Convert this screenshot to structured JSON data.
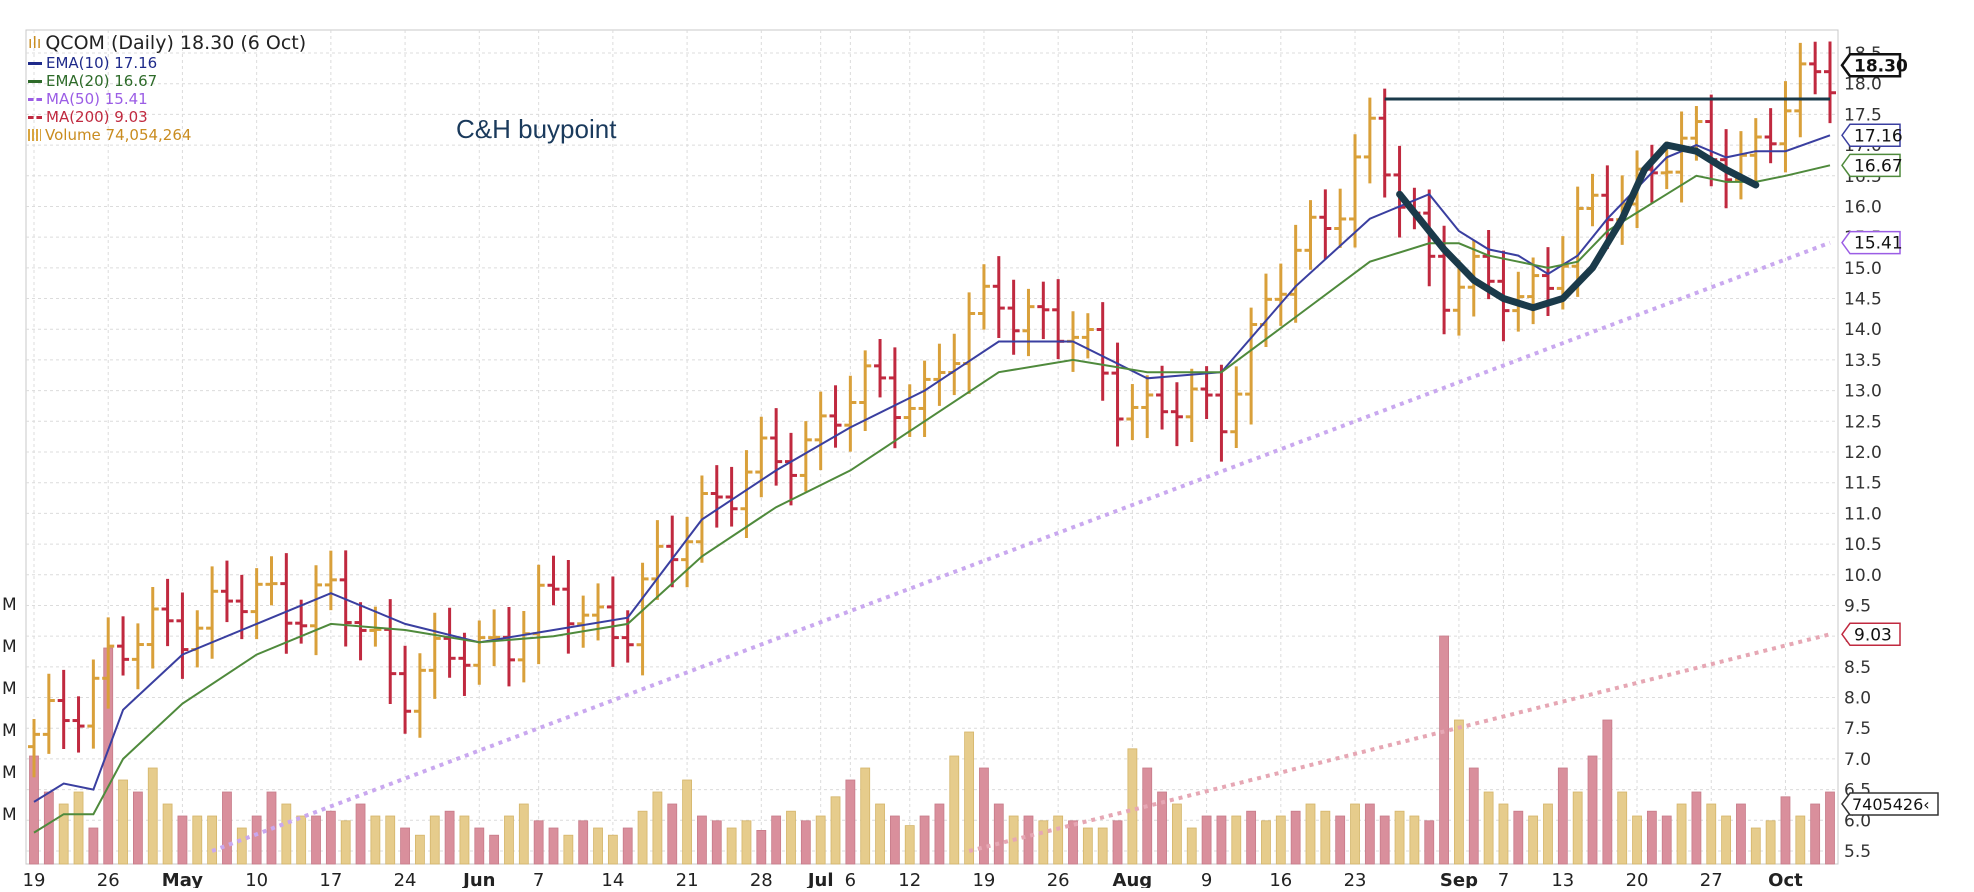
{
  "chart_data": {
    "type": "line",
    "title": "QCOM (Daily) 18.30 (6 Oct)",
    "ylim": [
      5.5,
      18.5
    ],
    "y_ticks": [
      "18.5",
      "18.0",
      "17.5",
      "17.0",
      "16.5",
      "16.0",
      "15.5",
      "15.0",
      "14.5",
      "14.0",
      "13.5",
      "13.0",
      "12.5",
      "12.0",
      "11.5",
      "11.0",
      "10.5",
      "10.0",
      "9.5",
      "9.0",
      "8.5",
      "8.0",
      "7.5",
      "7.0",
      "6.5",
      "6.0",
      "5.5"
    ],
    "x_ticks": [
      {
        "label": "19",
        "day": 0,
        "bold": false
      },
      {
        "label": "26",
        "day": 5,
        "bold": false
      },
      {
        "label": "May",
        "day": 10,
        "bold": true
      },
      {
        "label": "10",
        "day": 15,
        "bold": false
      },
      {
        "label": "17",
        "day": 20,
        "bold": false
      },
      {
        "label": "24",
        "day": 25,
        "bold": false
      },
      {
        "label": "Jun",
        "day": 30,
        "bold": true
      },
      {
        "label": "7",
        "day": 34,
        "bold": false
      },
      {
        "label": "14",
        "day": 39,
        "bold": false
      },
      {
        "label": "21",
        "day": 44,
        "bold": false
      },
      {
        "label": "28",
        "day": 49,
        "bold": false
      },
      {
        "label": "Jul",
        "day": 53,
        "bold": true
      },
      {
        "label": "6",
        "day": 55,
        "bold": false
      },
      {
        "label": "12",
        "day": 59,
        "bold": false
      },
      {
        "label": "19",
        "day": 64,
        "bold": false
      },
      {
        "label": "26",
        "day": 69,
        "bold": false
      },
      {
        "label": "Aug",
        "day": 74,
        "bold": true
      },
      {
        "label": "9",
        "day": 79,
        "bold": false
      },
      {
        "label": "16",
        "day": 84,
        "bold": false
      },
      {
        "label": "23",
        "day": 89,
        "bold": false
      },
      {
        "label": "Sep",
        "day": 96,
        "bold": true
      },
      {
        "label": "7",
        "day": 99,
        "bold": false
      },
      {
        "label": "13",
        "day": 103,
        "bold": false
      },
      {
        "label": "20",
        "day": 108,
        "bold": false
      },
      {
        "label": "27",
        "day": 113,
        "bold": false
      },
      {
        "label": "Oct",
        "day": 118,
        "bold": true
      }
    ],
    "volume_axis_labels": [
      "M",
      "M",
      "M",
      "M",
      "M",
      "M"
    ],
    "last_day": 121,
    "price_bars": {
      "days": [
        0,
        5,
        10,
        15,
        20,
        25,
        30,
        35,
        40,
        45,
        50,
        55,
        60,
        65,
        70,
        75,
        80,
        85,
        90,
        95,
        100,
        105,
        110,
        115,
        121
      ],
      "close": [
        7.2,
        8.6,
        9.3,
        9.6,
        9.6,
        8.3,
        8.8,
        9.5,
        9.2,
        11.2,
        11.8,
        12.9,
        13.0,
        14.6,
        13.8,
        12.6,
        12.8,
        15.2,
        17.0,
        14.8,
        14.5,
        15.8,
        16.9,
        16.8,
        18.3
      ],
      "up_color": "#d9a03a",
      "down_color": "#c0293f"
    },
    "series": [
      {
        "name": "EMA(10)",
        "last_label": "17.16",
        "color": "#3a3fa0",
        "style": "solid",
        "days": [
          0,
          2,
          4,
          6,
          10,
          15,
          20,
          25,
          30,
          35,
          40,
          45,
          50,
          55,
          60,
          65,
          70,
          75,
          80,
          85,
          90,
          94,
          96,
          98,
          100,
          102,
          104,
          106,
          108,
          110,
          112,
          114,
          116,
          118,
          121
        ],
        "values": [
          6.3,
          6.6,
          6.5,
          7.8,
          8.7,
          9.2,
          9.7,
          9.2,
          8.9,
          9.1,
          9.3,
          10.9,
          11.7,
          12.4,
          13.0,
          13.8,
          13.8,
          13.2,
          13.3,
          14.7,
          15.8,
          16.2,
          15.6,
          15.3,
          15.2,
          14.9,
          15.2,
          15.8,
          16.3,
          16.8,
          17.0,
          16.8,
          16.9,
          16.9,
          17.16
        ]
      },
      {
        "name": "EMA(20)",
        "last_label": "16.67",
        "color": "#4f8a3c",
        "style": "solid",
        "days": [
          0,
          2,
          4,
          6,
          10,
          15,
          20,
          25,
          30,
          35,
          40,
          45,
          50,
          55,
          60,
          65,
          70,
          75,
          80,
          85,
          90,
          94,
          96,
          98,
          100,
          102,
          104,
          106,
          108,
          110,
          112,
          114,
          116,
          118,
          121
        ],
        "values": [
          5.8,
          6.1,
          6.1,
          7.0,
          7.9,
          8.7,
          9.2,
          9.1,
          8.9,
          9.0,
          9.2,
          10.3,
          11.1,
          11.7,
          12.5,
          13.3,
          13.5,
          13.3,
          13.3,
          14.2,
          15.1,
          15.4,
          15.4,
          15.2,
          15.1,
          15.0,
          15.1,
          15.6,
          15.9,
          16.2,
          16.5,
          16.4,
          16.4,
          16.5,
          16.67
        ]
      },
      {
        "name": "MA(50)",
        "last_label": "15.41",
        "color": "#c9a8ef",
        "style": "dotted",
        "days": [
          12,
          121
        ],
        "values": [
          5.5,
          15.41
        ]
      },
      {
        "name": "MA(200)",
        "last_label": "9.03",
        "color": "#e6a7b4",
        "style": "dotted",
        "days": [
          63,
          121
        ],
        "values": [
          5.5,
          9.03
        ]
      }
    ],
    "volume": {
      "name": "Volume",
      "last_label": "74,054,264",
      "axis_label": "7405426‹",
      "color": "#e6cc8c",
      "down_color": "#d98f9c",
      "values": [
        0.45,
        0.3,
        0.25,
        0.3,
        0.15,
        0.9,
        0.35,
        0.3,
        0.4,
        0.25,
        0.2,
        0.2,
        0.2,
        0.3,
        0.15,
        0.2,
        0.3,
        0.25,
        0.2,
        0.2,
        0.22,
        0.18,
        0.25,
        0.2,
        0.2,
        0.15,
        0.12,
        0.2,
        0.22,
        0.2,
        0.15,
        0.12,
        0.2,
        0.25,
        0.18,
        0.15,
        0.12,
        0.18,
        0.15,
        0.12,
        0.15,
        0.22,
        0.3,
        0.25,
        0.35,
        0.2,
        0.18,
        0.15,
        0.18,
        0.14,
        0.2,
        0.22,
        0.18,
        0.2,
        0.28,
        0.35,
        0.4,
        0.25,
        0.2,
        0.16,
        0.2,
        0.25,
        0.45,
        0.55,
        0.4,
        0.25,
        0.2,
        0.2,
        0.18,
        0.2,
        0.18,
        0.15,
        0.15,
        0.18,
        0.48,
        0.4,
        0.3,
        0.25,
        0.15,
        0.2,
        0.2,
        0.2,
        0.22,
        0.18,
        0.2,
        0.22,
        0.25,
        0.22,
        0.2,
        0.25,
        0.25,
        0.2,
        0.22,
        0.2,
        0.18,
        0.95,
        0.6,
        0.4,
        0.3,
        0.25,
        0.22,
        0.2,
        0.25,
        0.4,
        0.3,
        0.45,
        0.6,
        0.3,
        0.2,
        0.22,
        0.2,
        0.25,
        0.3,
        0.25,
        0.2,
        0.25,
        0.15,
        0.18,
        0.28,
        0.2,
        0.25,
        0.3
      ]
    },
    "legend": {
      "title": "QCOM (Daily) 18.30 (6 Oct)",
      "items": [
        {
          "label": "EMA(10) 17.16",
          "color": "#1e2a8a",
          "style": "solid"
        },
        {
          "label": "EMA(20) 16.67",
          "color": "#2e6b2a",
          "style": "solid"
        },
        {
          "label": "MA(50) 15.41",
          "color": "#9b5de5",
          "style": "dashed"
        },
        {
          "label": "MA(200) 9.03",
          "color": "#c0293f",
          "style": "dashed"
        }
      ],
      "volume_label": "Volume 74,054,264",
      "volume_color": "#c98c1f",
      "placement": "top-left"
    },
    "last_price_label": "18.30",
    "annotations": {
      "text": "C&H buypoint",
      "buypoint_price": 17.75,
      "buypoint_from_day": 91,
      "buypoint_to_day": 121,
      "handle_color": "#1a3a4a"
    },
    "grid": true
  }
}
